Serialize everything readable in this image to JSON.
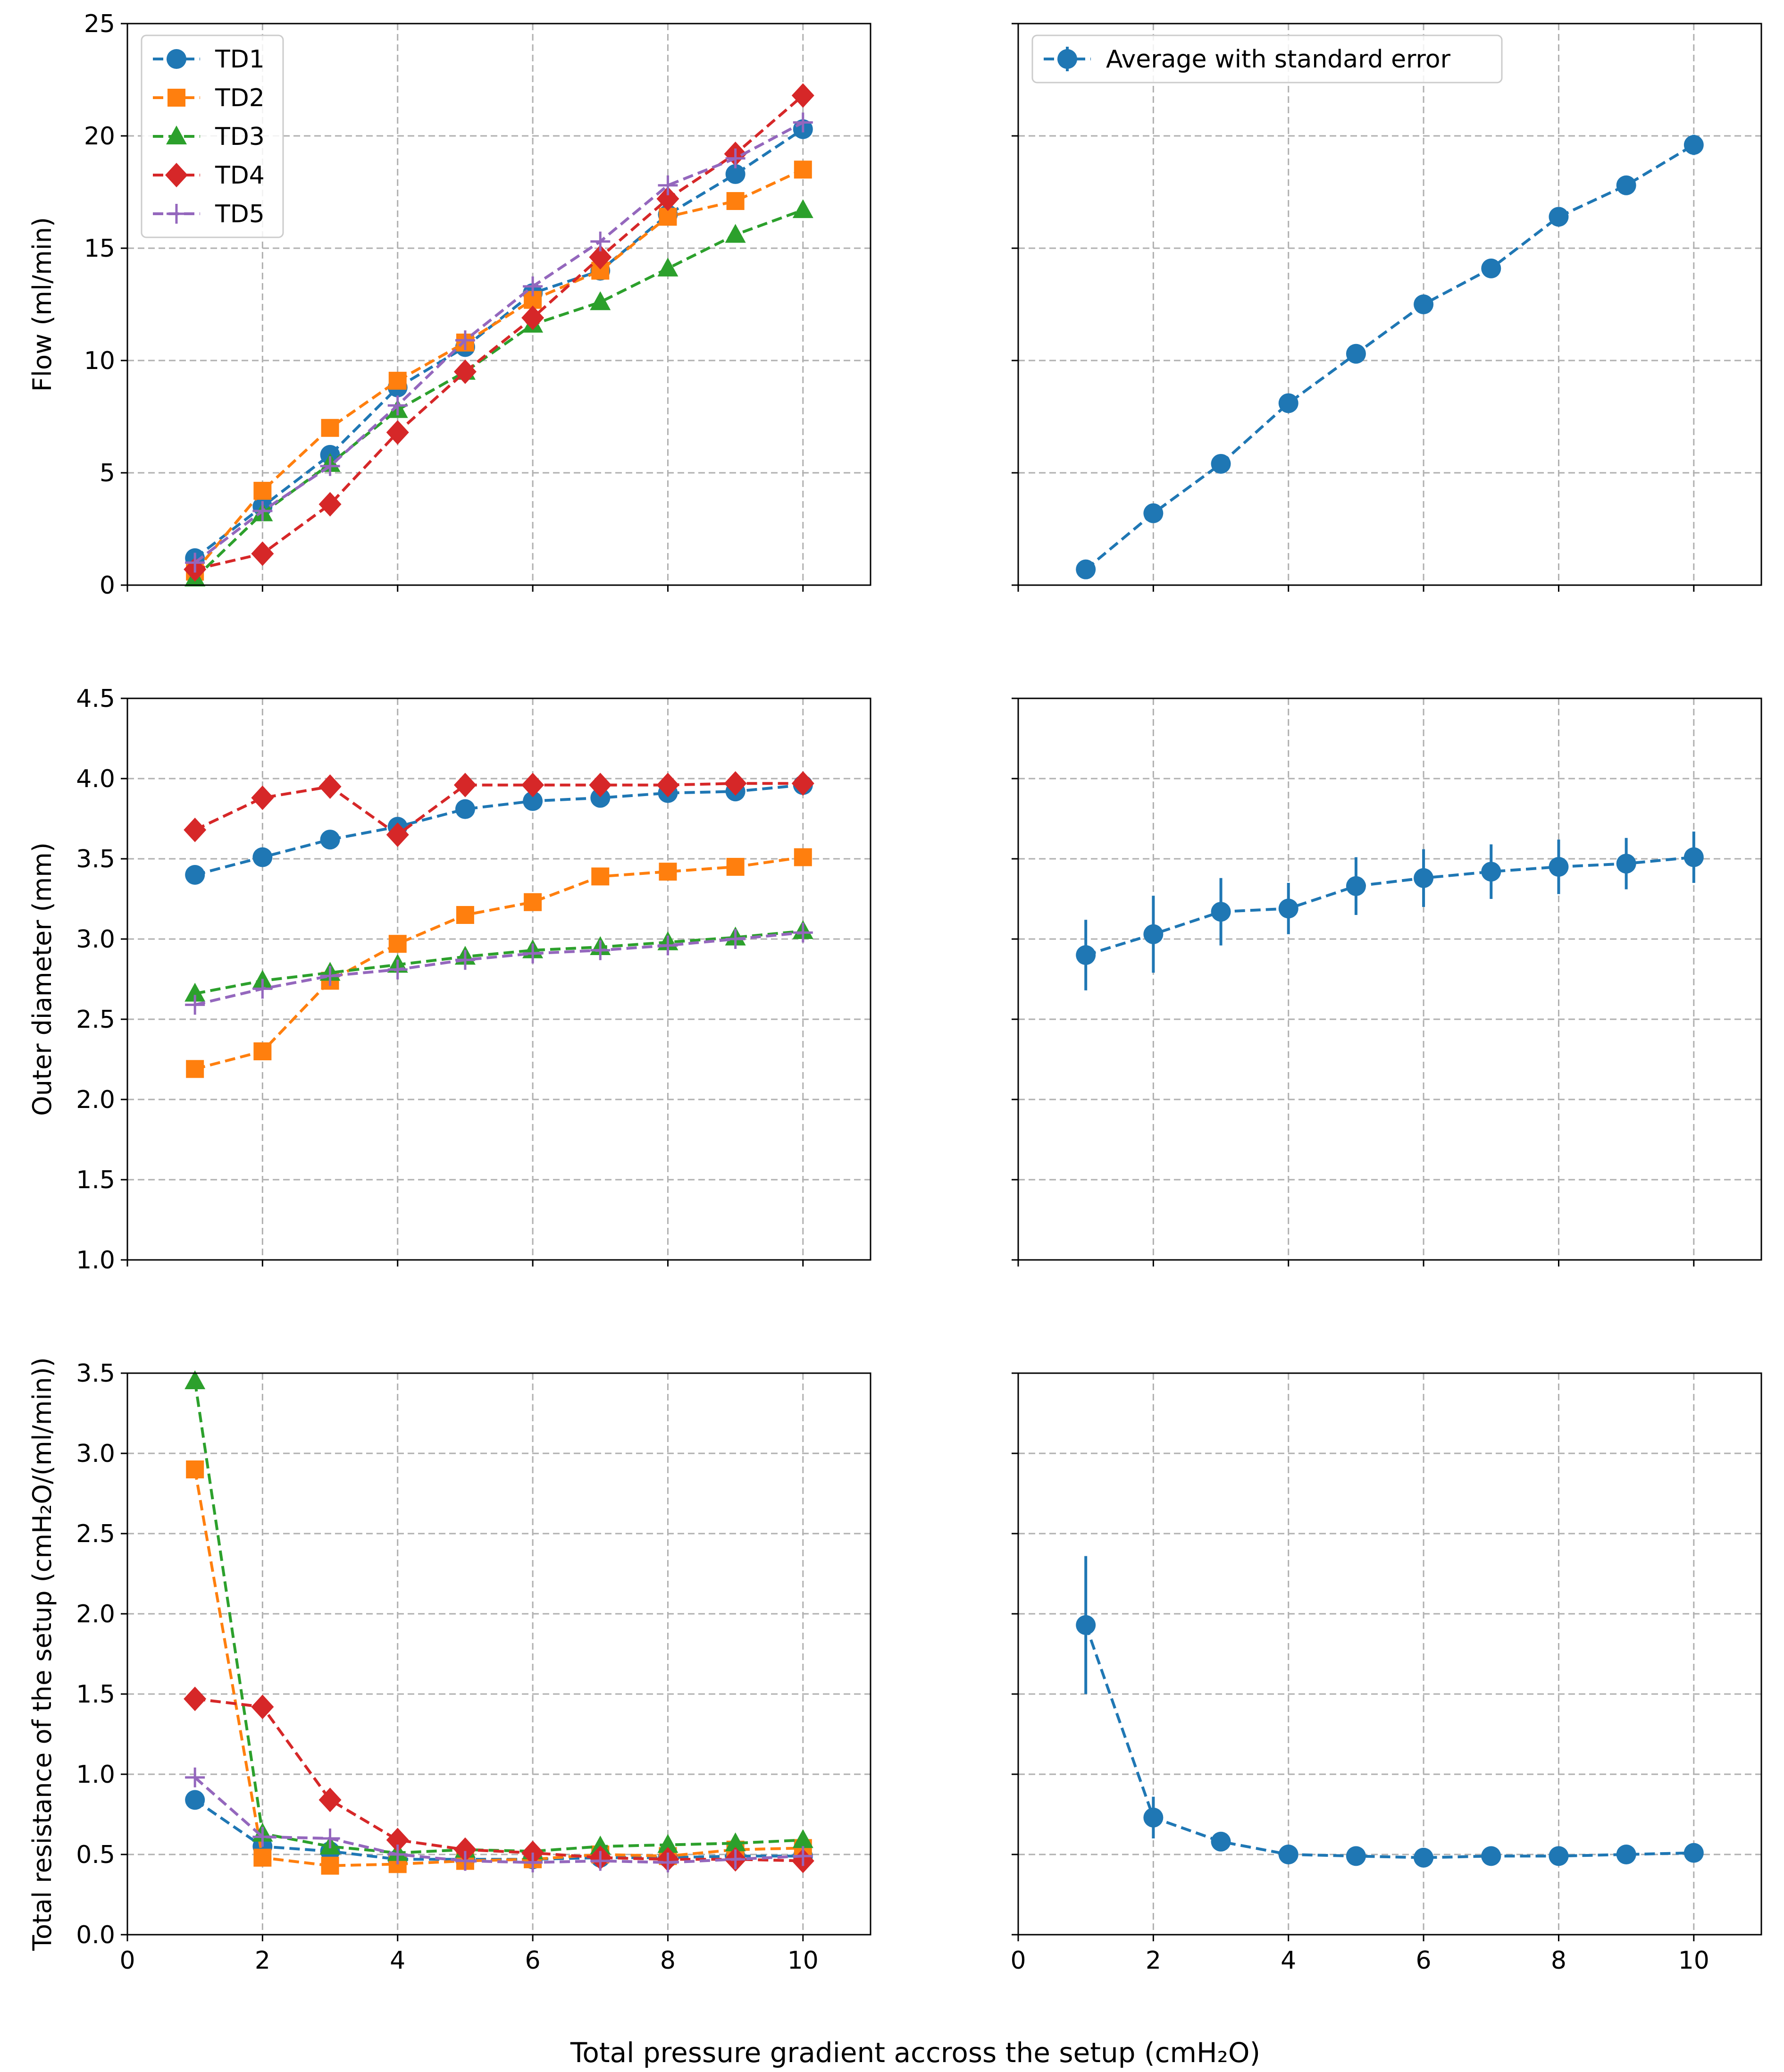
{
  "figure": {
    "xlabel": "Total pressure gradient accross the setup (cmH₂O)"
  },
  "chart_data": [
    {
      "id": "flow-individual",
      "type": "line",
      "ylabel": "Flow (ml/min)",
      "xlim": [
        0,
        11
      ],
      "ylim": [
        0,
        25
      ],
      "xticks": [
        0,
        2,
        4,
        6,
        8,
        10
      ],
      "yticks": [
        0,
        5,
        10,
        15,
        20,
        25
      ],
      "ytick_labels": [
        "0",
        "5",
        "10",
        "15",
        "20",
        "25"
      ],
      "x_ticklabels_visible": false,
      "grid": true,
      "legend": "top-left",
      "x": [
        1,
        2,
        3,
        4,
        5,
        6,
        7,
        8,
        9,
        10
      ],
      "series": [
        {
          "name": "TD1",
          "color": "#1f77b4",
          "marker": "circle",
          "values": [
            1.2,
            3.5,
            5.8,
            8.8,
            10.6,
            13.0,
            14.0,
            16.5,
            18.3,
            20.3
          ]
        },
        {
          "name": "TD2",
          "color": "#ff7f0e",
          "marker": "square",
          "values": [
            0.6,
            4.2,
            7.0,
            9.1,
            10.8,
            12.7,
            14.0,
            16.4,
            17.1,
            18.5
          ]
        },
        {
          "name": "TD3",
          "color": "#2ca02c",
          "marker": "triangle",
          "values": [
            0.3,
            3.2,
            5.4,
            7.8,
            9.5,
            11.6,
            12.6,
            14.1,
            15.6,
            16.7
          ]
        },
        {
          "name": "TD4",
          "color": "#d62728",
          "marker": "diamond",
          "values": [
            0.7,
            1.4,
            3.6,
            6.8,
            9.5,
            11.9,
            14.6,
            17.2,
            19.2,
            21.8
          ]
        },
        {
          "name": "TD5",
          "color": "#9467bd",
          "marker": "plus",
          "values": [
            1.0,
            3.3,
            5.3,
            8.0,
            10.9,
            13.3,
            15.3,
            17.8,
            19.0,
            20.6
          ]
        }
      ]
    },
    {
      "id": "flow-average",
      "type": "line",
      "xlim": [
        0,
        11
      ],
      "ylim": [
        0,
        25
      ],
      "xticks": [
        0,
        2,
        4,
        6,
        8,
        10
      ],
      "yticks": [
        0,
        5,
        10,
        15,
        20,
        25
      ],
      "ytick_labels": [],
      "x_ticklabels_visible": false,
      "grid": true,
      "legend": "top-left",
      "x": [
        1,
        2,
        3,
        4,
        5,
        6,
        7,
        8,
        9,
        10
      ],
      "series": [
        {
          "name": "Average with standard error",
          "color": "#1f77b4",
          "marker": "circle",
          "values": [
            0.7,
            3.2,
            5.4,
            8.1,
            10.3,
            12.5,
            14.1,
            16.4,
            17.8,
            19.6
          ],
          "errors": [
            0.0,
            0.0,
            0.0,
            0.0,
            0.0,
            0.0,
            0.0,
            0.0,
            0.4,
            0.45
          ]
        }
      ]
    },
    {
      "id": "diameter-individual",
      "type": "line",
      "ylabel": "Outer diameter (mm)",
      "xlim": [
        0,
        11
      ],
      "ylim": [
        1.0,
        4.5
      ],
      "xticks": [
        0,
        2,
        4,
        6,
        8,
        10
      ],
      "yticks": [
        1.0,
        1.5,
        2.0,
        2.5,
        3.0,
        3.5,
        4.0,
        4.5
      ],
      "ytick_labels": [
        "1.0",
        "1.5",
        "2.0",
        "2.5",
        "3.0",
        "3.5",
        "4.0",
        "4.5"
      ],
      "x_ticklabels_visible": false,
      "grid": true,
      "x": [
        1,
        2,
        3,
        4,
        5,
        6,
        7,
        8,
        9,
        10
      ],
      "series": [
        {
          "name": "TD1",
          "color": "#1f77b4",
          "marker": "circle",
          "values": [
            3.4,
            3.51,
            3.62,
            3.7,
            3.81,
            3.86,
            3.88,
            3.91,
            3.92,
            3.96
          ]
        },
        {
          "name": "TD2",
          "color": "#ff7f0e",
          "marker": "square",
          "values": [
            2.19,
            2.3,
            2.74,
            2.97,
            3.15,
            3.23,
            3.39,
            3.42,
            3.45,
            3.51
          ]
        },
        {
          "name": "TD3",
          "color": "#2ca02c",
          "marker": "triangle",
          "values": [
            2.66,
            2.74,
            2.79,
            2.84,
            2.89,
            2.93,
            2.95,
            2.98,
            3.01,
            3.05
          ]
        },
        {
          "name": "TD4",
          "color": "#d62728",
          "marker": "diamond",
          "values": [
            3.68,
            3.88,
            3.95,
            3.65,
            3.96,
            3.96,
            3.96,
            3.96,
            3.97,
            3.97
          ]
        },
        {
          "name": "TD5",
          "color": "#9467bd",
          "marker": "plus",
          "values": [
            2.59,
            2.69,
            2.77,
            2.81,
            2.87,
            2.91,
            2.93,
            2.96,
            3.0,
            3.04
          ]
        }
      ]
    },
    {
      "id": "diameter-average",
      "type": "line",
      "xlim": [
        0,
        11
      ],
      "ylim": [
        1.0,
        4.5
      ],
      "xticks": [
        0,
        2,
        4,
        6,
        8,
        10
      ],
      "yticks": [
        1.0,
        1.5,
        2.0,
        2.5,
        3.0,
        3.5,
        4.0,
        4.5
      ],
      "ytick_labels": [],
      "x_ticklabels_visible": false,
      "grid": true,
      "x": [
        1,
        2,
        3,
        4,
        5,
        6,
        7,
        8,
        9,
        10
      ],
      "series": [
        {
          "name": "Average with standard error",
          "color": "#1f77b4",
          "marker": "circle",
          "values": [
            2.9,
            3.03,
            3.17,
            3.19,
            3.33,
            3.38,
            3.42,
            3.45,
            3.47,
            3.51
          ],
          "errors": [
            0.22,
            0.24,
            0.21,
            0.16,
            0.18,
            0.18,
            0.17,
            0.17,
            0.16,
            0.16
          ]
        }
      ]
    },
    {
      "id": "resistance-individual",
      "type": "line",
      "ylabel": "Total resistance of the setup (cmH₂O/(ml/min))",
      "xlim": [
        0,
        11
      ],
      "ylim": [
        0.0,
        3.5
      ],
      "xticks": [
        0,
        2,
        4,
        6,
        8,
        10
      ],
      "xtick_labels": [
        "0",
        "2",
        "4",
        "6",
        "8",
        "10"
      ],
      "yticks": [
        0.0,
        0.5,
        1.0,
        1.5,
        2.0,
        2.5,
        3.0,
        3.5
      ],
      "ytick_labels": [
        "0.0",
        "0.5",
        "1.0",
        "1.5",
        "2.0",
        "2.5",
        "3.0",
        "3.5"
      ],
      "x_ticklabels_visible": true,
      "grid": true,
      "x": [
        1,
        2,
        3,
        4,
        5,
        6,
        7,
        8,
        9,
        10
      ],
      "series": [
        {
          "name": "TD1",
          "color": "#1f77b4",
          "marker": "circle",
          "values": [
            0.84,
            0.55,
            0.52,
            0.47,
            0.47,
            0.47,
            0.48,
            0.48,
            0.49,
            0.49
          ]
        },
        {
          "name": "TD2",
          "color": "#ff7f0e",
          "marker": "square",
          "values": [
            2.9,
            0.48,
            0.43,
            0.44,
            0.46,
            0.47,
            0.5,
            0.49,
            0.53,
            0.54
          ]
        },
        {
          "name": "TD3",
          "color": "#2ca02c",
          "marker": "triangle",
          "values": [
            3.45,
            0.63,
            0.55,
            0.51,
            0.53,
            0.52,
            0.55,
            0.56,
            0.57,
            0.59
          ]
        },
        {
          "name": "TD4",
          "color": "#d62728",
          "marker": "diamond",
          "values": [
            1.47,
            1.42,
            0.84,
            0.59,
            0.53,
            0.51,
            0.48,
            0.47,
            0.47,
            0.46
          ]
        },
        {
          "name": "TD5",
          "color": "#9467bd",
          "marker": "plus",
          "values": [
            0.98,
            0.61,
            0.6,
            0.5,
            0.46,
            0.45,
            0.46,
            0.45,
            0.47,
            0.49
          ]
        }
      ]
    },
    {
      "id": "resistance-average",
      "type": "line",
      "xlim": [
        0,
        11
      ],
      "ylim": [
        0.0,
        3.5
      ],
      "xticks": [
        0,
        2,
        4,
        6,
        8,
        10
      ],
      "xtick_labels": [
        "0",
        "2",
        "4",
        "6",
        "8",
        "10"
      ],
      "yticks": [
        0.0,
        0.5,
        1.0,
        1.5,
        2.0,
        2.5,
        3.0,
        3.5
      ],
      "ytick_labels": [],
      "x_ticklabels_visible": true,
      "grid": true,
      "x": [
        1,
        2,
        3,
        4,
        5,
        6,
        7,
        8,
        9,
        10
      ],
      "series": [
        {
          "name": "Average with standard error",
          "color": "#1f77b4",
          "marker": "circle",
          "values": [
            1.93,
            0.73,
            0.58,
            0.5,
            0.49,
            0.48,
            0.49,
            0.49,
            0.5,
            0.51
          ],
          "errors": [
            0.43,
            0.13,
            0.04,
            0.02,
            0.02,
            0.02,
            0.02,
            0.02,
            0.02,
            0.02
          ]
        }
      ]
    }
  ]
}
